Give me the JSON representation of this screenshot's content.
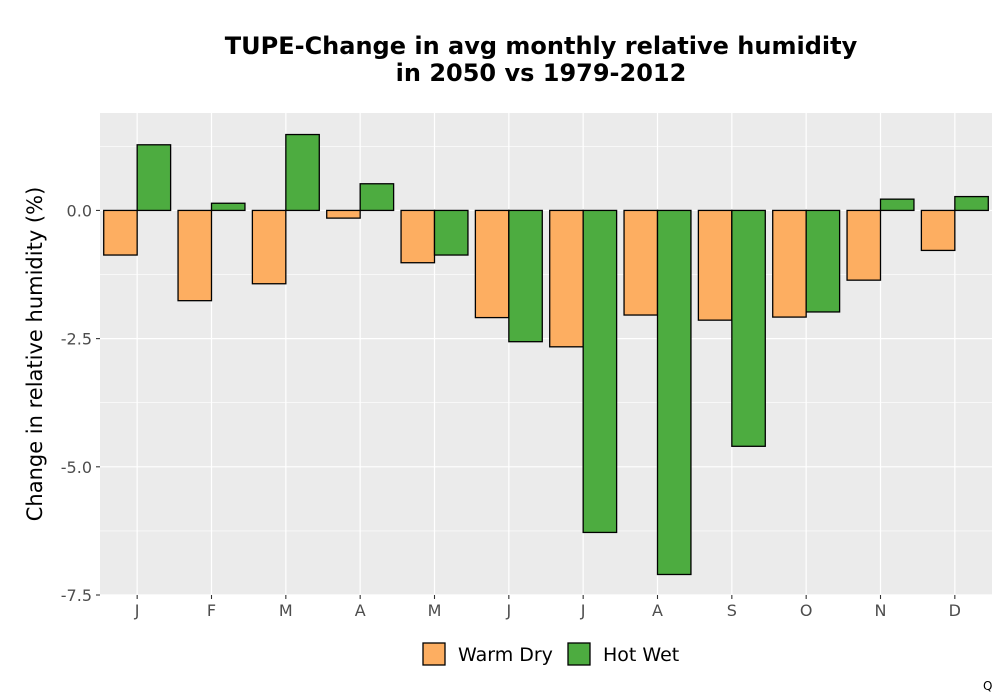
{
  "chart_data": {
    "type": "bar",
    "title_lines": [
      "TUPE-Change in avg monthly relative humidity",
      "in 2050 vs 1979-2012"
    ],
    "xlabel": "",
    "ylabel": "Change in relative humidity (%)",
    "categories": [
      "J",
      "F",
      "M",
      "A",
      "M",
      "J",
      "J",
      "A",
      "S",
      "O",
      "N",
      "D"
    ],
    "series": [
      {
        "name": "Warm Dry",
        "color": "#FDAE61",
        "values": [
          -0.87,
          -1.76,
          -1.43,
          -0.15,
          -1.02,
          -2.09,
          -2.66,
          -2.04,
          -2.14,
          -2.08,
          -1.36,
          -0.78
        ]
      },
      {
        "name": "Hot Wet",
        "color": "#4DAC40",
        "values": [
          1.28,
          0.14,
          1.48,
          0.52,
          -0.87,
          -2.56,
          -6.28,
          -7.1,
          -4.6,
          -1.98,
          0.22,
          0.27
        ]
      }
    ],
    "ylim": [
      -7.5,
      1.9
    ],
    "yticks": [
      0.0,
      -2.5,
      -5.0,
      -7.5
    ],
    "ytick_labels": [
      "0.0",
      "-2.5",
      "-5.0",
      "-7.5"
    ],
    "grid": true,
    "legend_position": "bottom"
  },
  "footnote": "Q"
}
